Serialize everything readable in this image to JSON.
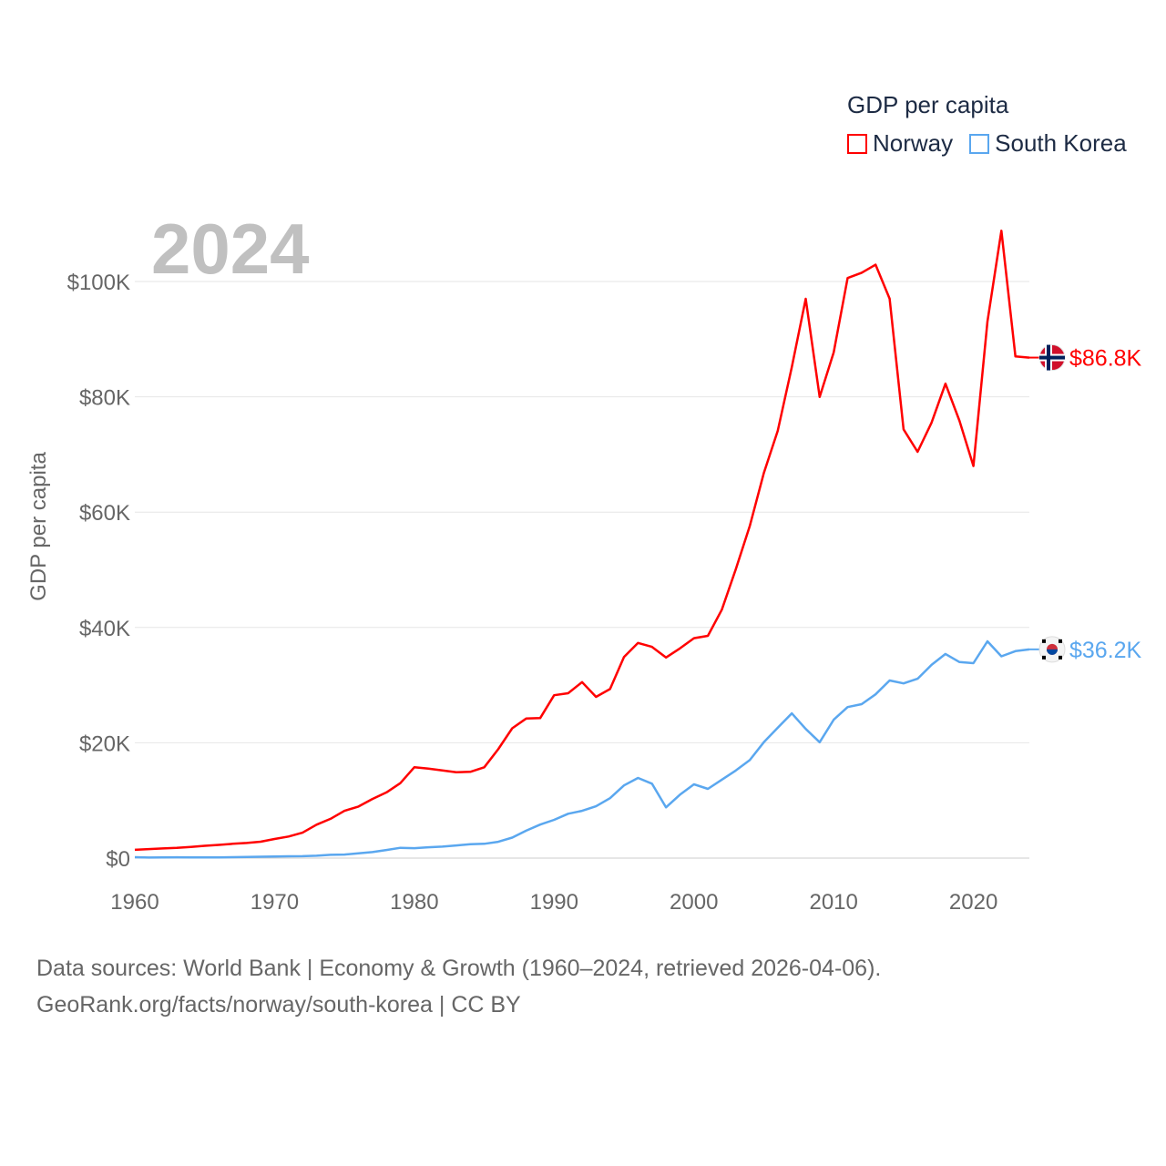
{
  "chart_data": {
    "type": "line",
    "title": "GDP per capita",
    "ylabel": "GDP per capita",
    "xlabel": "",
    "year_label": "2024",
    "x": [
      1960,
      1961,
      1962,
      1963,
      1964,
      1965,
      1966,
      1967,
      1968,
      1969,
      1970,
      1971,
      1972,
      1973,
      1974,
      1975,
      1976,
      1977,
      1978,
      1979,
      1980,
      1981,
      1982,
      1983,
      1984,
      1985,
      1986,
      1987,
      1988,
      1989,
      1990,
      1991,
      1992,
      1993,
      1994,
      1995,
      1996,
      1997,
      1998,
      1999,
      2000,
      2001,
      2002,
      2003,
      2004,
      2005,
      2006,
      2007,
      2008,
      2009,
      2010,
      2011,
      2012,
      2013,
      2014,
      2015,
      2016,
      2017,
      2018,
      2019,
      2020,
      2021,
      2022,
      2023,
      2024
    ],
    "xlim": [
      1960,
      2024
    ],
    "ylim": [
      0,
      110
    ],
    "y_unit": "thousand USD",
    "x_ticks": [
      "1960",
      "1970",
      "1980",
      "1990",
      "2000",
      "2010",
      "2020"
    ],
    "y_ticks": [
      {
        "v": 0,
        "label": "$0"
      },
      {
        "v": 20,
        "label": "$20K"
      },
      {
        "v": 40,
        "label": "$40K"
      },
      {
        "v": 60,
        "label": "$60K"
      },
      {
        "v": 80,
        "label": "$80K"
      },
      {
        "v": 100,
        "label": "$100K"
      }
    ],
    "grid": true,
    "legend_position": "top-right",
    "series": [
      {
        "name": "Norway",
        "color": "#ff0000",
        "end_label": "$86.8K",
        "flag": "norway-flag",
        "values": [
          1.44,
          1.56,
          1.67,
          1.77,
          1.93,
          2.13,
          2.29,
          2.48,
          2.62,
          2.84,
          3.31,
          3.74,
          4.41,
          5.79,
          6.81,
          8.2,
          8.94,
          10.25,
          11.39,
          13.0,
          15.77,
          15.52,
          15.22,
          14.9,
          14.96,
          15.75,
          18.88,
          22.51,
          24.21,
          24.28,
          28.24,
          28.6,
          30.52,
          27.96,
          29.32,
          34.88,
          37.32,
          36.63,
          34.79,
          36.37,
          38.13,
          38.54,
          43.08,
          50.13,
          57.6,
          66.78,
          74.11,
          85.14,
          97.0,
          79.98,
          87.69,
          100.6,
          101.52,
          102.91,
          97.02,
          74.36,
          70.46,
          75.5,
          82.27,
          75.83,
          67.99,
          93.07,
          108.8,
          87.0,
          86.8
        ]
      },
      {
        "name": "South Korea",
        "color": "#5aa7ef",
        "end_label": "$36.2K",
        "flag": "south-korea-flag",
        "values": [
          0.16,
          0.09,
          0.11,
          0.15,
          0.12,
          0.11,
          0.13,
          0.16,
          0.2,
          0.24,
          0.28,
          0.31,
          0.33,
          0.41,
          0.57,
          0.62,
          0.83,
          1.05,
          1.4,
          1.78,
          1.72,
          1.88,
          1.99,
          2.2,
          2.41,
          2.48,
          2.83,
          3.55,
          4.75,
          5.82,
          6.63,
          7.7,
          8.2,
          8.99,
          10.4,
          12.6,
          13.9,
          12.9,
          8.8,
          11.0,
          12.8,
          12.0,
          13.6,
          15.2,
          17.0,
          20.1,
          22.6,
          25.1,
          22.4,
          20.1,
          24.0,
          26.2,
          26.7,
          28.4,
          30.8,
          30.3,
          31.1,
          33.5,
          35.4,
          34.0,
          33.8,
          37.6,
          35.0,
          35.9,
          36.2
        ]
      }
    ]
  },
  "footer": {
    "line1": "Data sources: World Bank | Economy & Growth (1960–2024, retrieved 2026-04-06).",
    "line2": "GeoRank.org/facts/norway/south-korea | CC BY"
  }
}
